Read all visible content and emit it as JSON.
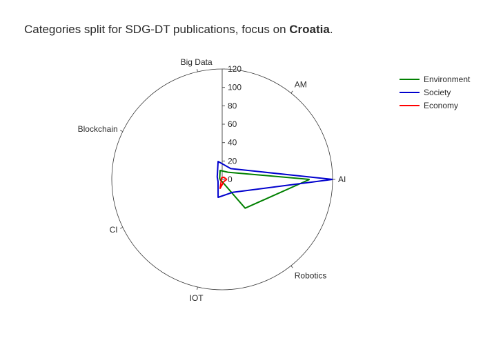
{
  "title": {
    "prefix": "Categories split for SDG-DT publications, focus on ",
    "country": "Croatia",
    "suffix": "."
  },
  "chart_data": {
    "type": "polar-line",
    "title": "Categories split for SDG-DT publications, focus on Croatia.",
    "categories": [
      "AI",
      "AM",
      "Big Data",
      "Blockchain",
      "CI",
      "IOT",
      "Robotics"
    ],
    "radial_range": [
      0,
      120
    ],
    "radial_ticks": [
      0,
      20,
      40,
      60,
      80,
      100,
      120
    ],
    "angular_direction": "counterclockwise",
    "angular_start": "right",
    "legend_position": "top-right",
    "series": [
      {
        "name": "Environment",
        "color": "#008000",
        "values": [
          95,
          10,
          10,
          3,
          2,
          2,
          40
        ]
      },
      {
        "name": "Society",
        "color": "#0000cd",
        "values": [
          120,
          15,
          20,
          6,
          5,
          20,
          18
        ]
      },
      {
        "name": "Economy",
        "color": "#ff0000",
        "values": [
          5,
          3,
          2,
          1,
          1,
          10,
          3
        ]
      }
    ]
  }
}
